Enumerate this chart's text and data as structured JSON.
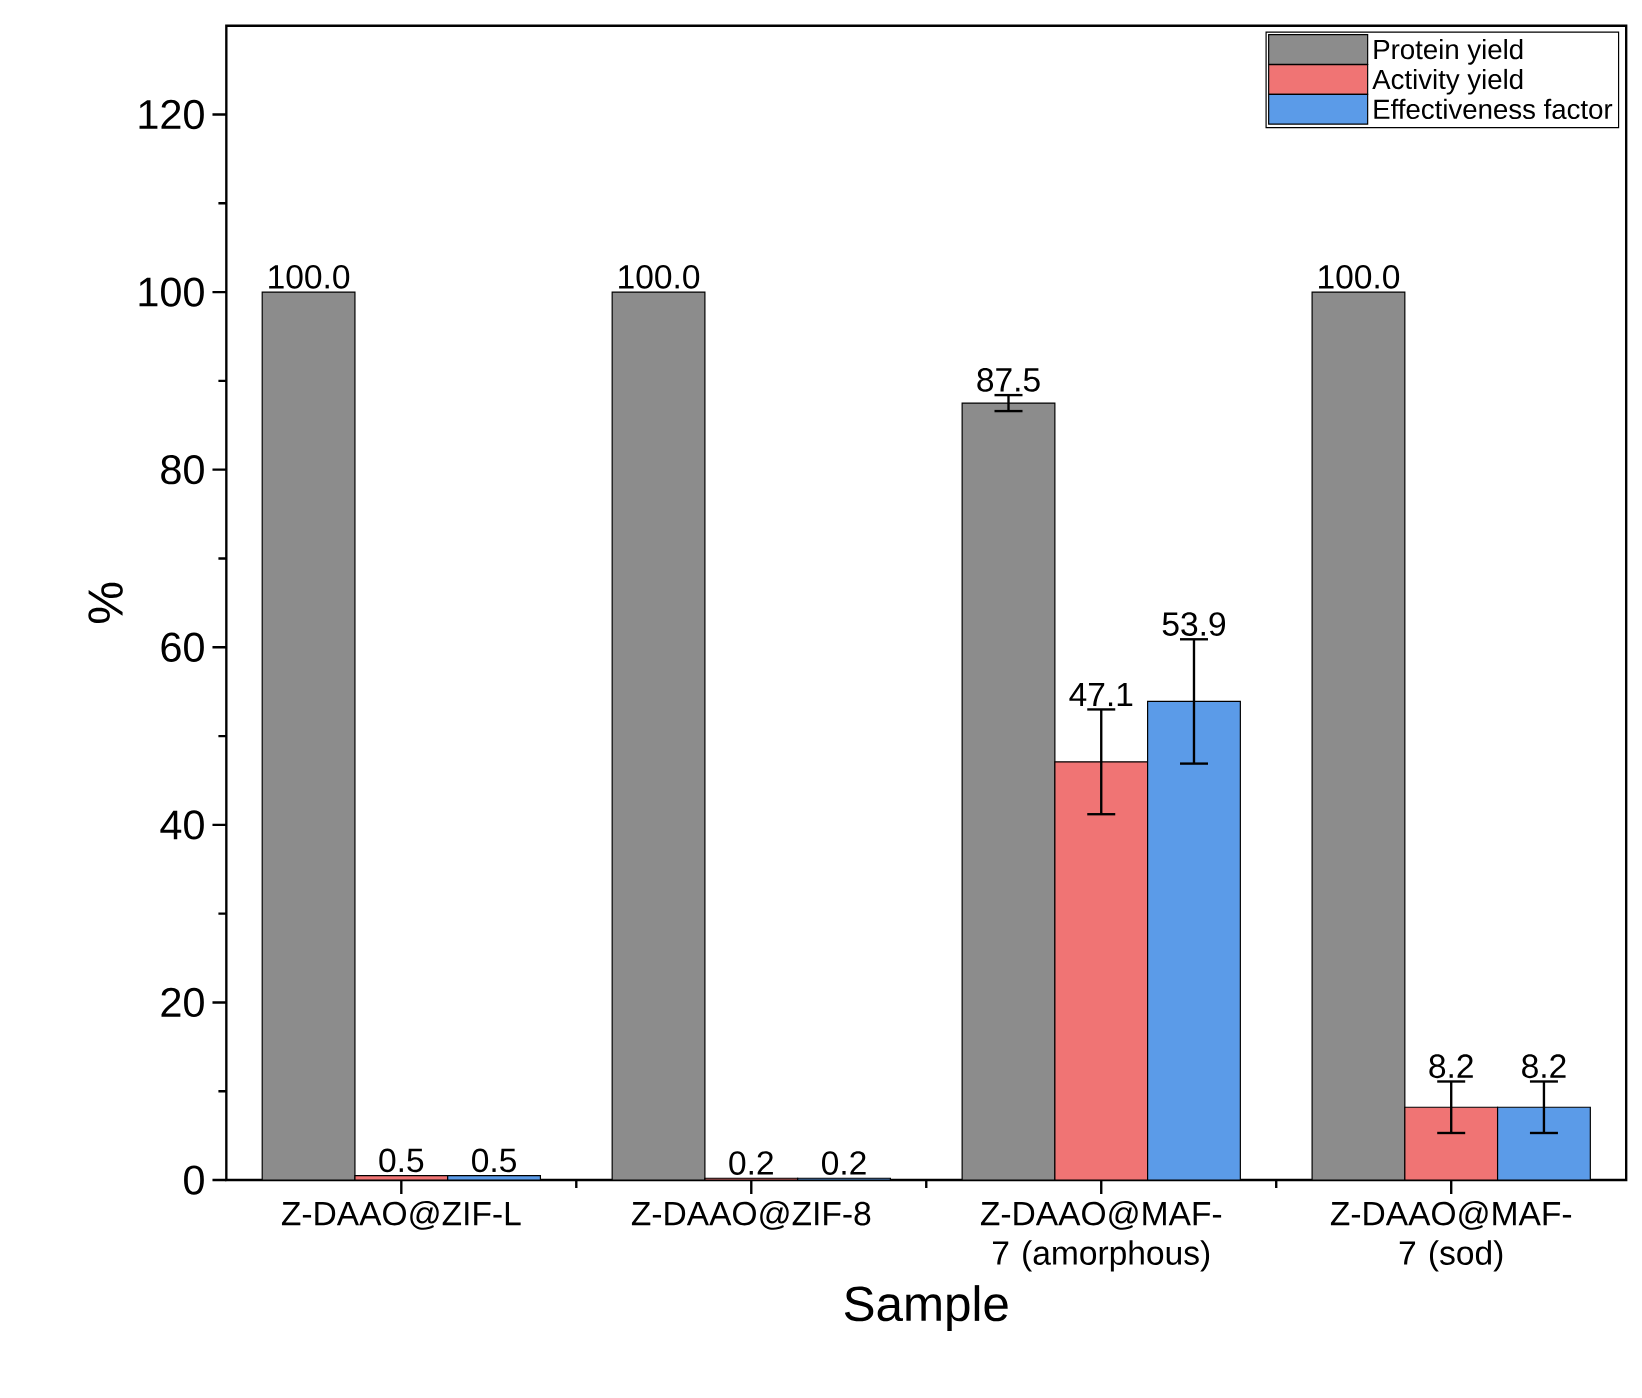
{
  "chart_data": {
    "type": "bar",
    "xlabel": "Sample",
    "ylabel": "%",
    "categories": [
      "Z-DAAO@ZIF-L",
      "Z-DAAO@ZIF-8",
      "Z-DAAO@MAF-7 (amorphous)",
      "Z-DAAO@MAF-7 (sod)"
    ],
    "ylim": [
      0,
      130
    ],
    "yticks": [
      0,
      20,
      40,
      60,
      80,
      100,
      120
    ],
    "legend": "top right",
    "series": [
      {
        "name": "Protein yield",
        "color": "#8c8c8c",
        "values": [
          100.0,
          100.0,
          87.5,
          100.0
        ],
        "errors": [
          null,
          null,
          0.9,
          null
        ],
        "value_labels": [
          "100.0",
          "100.0",
          "87.5",
          "100.0"
        ]
      },
      {
        "name": "Activity yield",
        "color": "#f07474",
        "values": [
          0.5,
          0.2,
          47.1,
          8.2
        ],
        "errors": [
          null,
          null,
          5.9,
          2.9
        ],
        "value_labels": [
          "0.5",
          "0.2",
          "47.1",
          "8.2"
        ]
      },
      {
        "name": "Effectiveness factor",
        "color": "#5b9be8",
        "values": [
          0.5,
          0.2,
          53.9,
          8.2
        ],
        "errors": [
          null,
          null,
          7.0,
          2.9
        ],
        "value_labels": [
          "0.5",
          "0.2",
          "53.9",
          "8.2"
        ]
      }
    ]
  }
}
